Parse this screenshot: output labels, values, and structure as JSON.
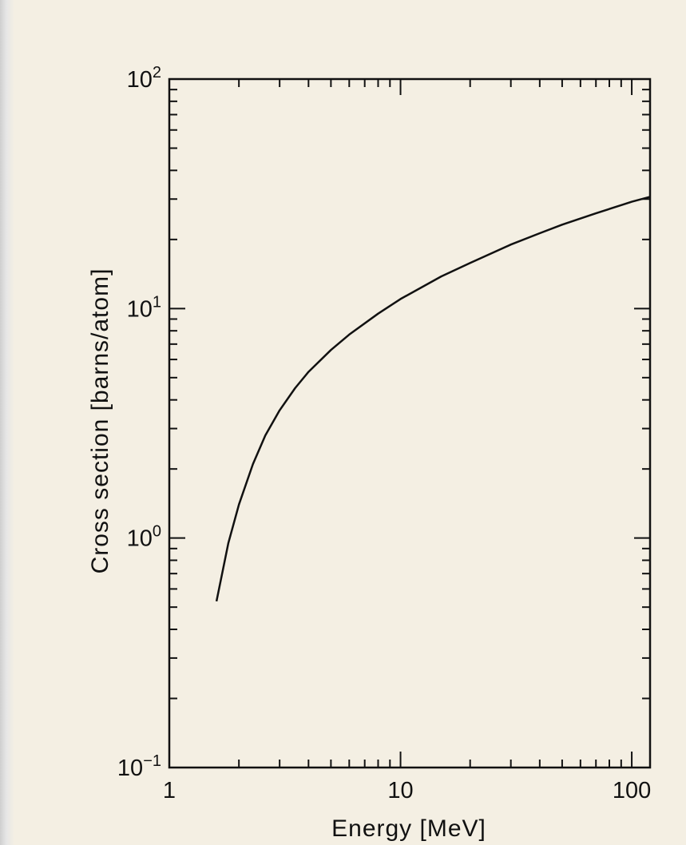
{
  "chart_data": {
    "type": "line",
    "title": "",
    "xlabel": "Energy [MeV]",
    "ylabel": "Cross section [barns/atom]",
    "x_scale": "log",
    "y_scale": "log",
    "xlim": [
      1,
      120
    ],
    "ylim": [
      0.1,
      100
    ],
    "grid": false,
    "legend": "none",
    "line_color": "#111111",
    "x_ticks": [
      {
        "value": 1,
        "label": "1"
      },
      {
        "value": 10,
        "label": "10"
      },
      {
        "value": 100,
        "label": "100"
      }
    ],
    "y_ticks": [
      {
        "value": 0.1,
        "base": "10",
        "exp": "−1"
      },
      {
        "value": 1,
        "base": "10",
        "exp": "0"
      },
      {
        "value": 10,
        "base": "10",
        "exp": "1"
      },
      {
        "value": 100,
        "base": "10",
        "exp": "2"
      }
    ],
    "series": [
      {
        "x": [
          1.6,
          1.8,
          2.0,
          2.3,
          2.6,
          3.0,
          3.5,
          4.0,
          5.0,
          6.0,
          8.0,
          10.0,
          15.0,
          20.0,
          30.0,
          40.0,
          50.0,
          70.0,
          100.0,
          120.0
        ],
        "y": [
          0.53,
          0.95,
          1.4,
          2.1,
          2.8,
          3.6,
          4.5,
          5.3,
          6.6,
          7.7,
          9.5,
          11.0,
          13.8,
          15.8,
          19.0,
          21.3,
          23.2,
          26.0,
          29.2,
          30.7
        ]
      }
    ]
  }
}
